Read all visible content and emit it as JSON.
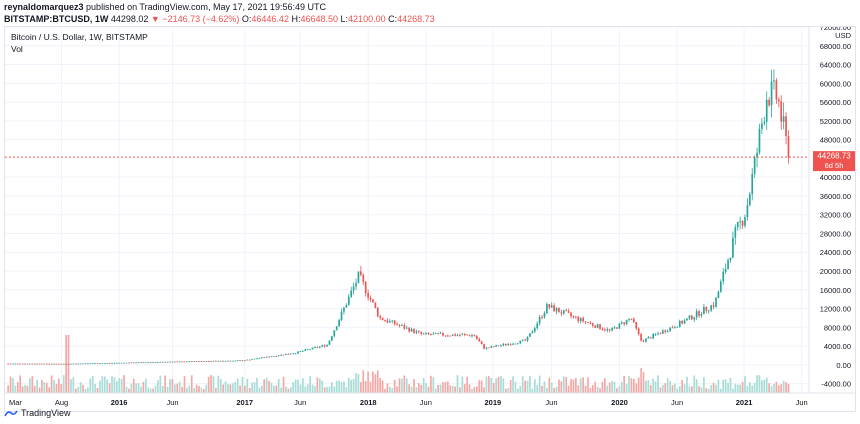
{
  "header": {
    "user": "reynaldomarquez3",
    "published_text": "published on TradingView.com, May 17, 2021 19:56:49 UTC",
    "symbol": "BITSTAMP:BTCUSD, 1W",
    "last": "44298.02",
    "change": "▼ −2146.73 (−4.62%)",
    "o_label": "O:",
    "o": "46446.42",
    "h_label": "H:",
    "h": "46648.50",
    "l_label": "L:",
    "l": "42100.00",
    "c_label": "C:",
    "c": "44268.73"
  },
  "legend": {
    "title": "Bitcoin / U.S. Dollar, 1W, BITSTAMP",
    "vol": "Vol"
  },
  "price_axis": {
    "currency": "USD",
    "labels": [
      "72000.00",
      "68000.00",
      "64000.00",
      "60000.00",
      "56000.00",
      "52000.00",
      "48000.00",
      "40000.00",
      "36000.00",
      "32000.00",
      "28000.00",
      "24000.00",
      "20000.00",
      "16000.00",
      "12000.00",
      "8000.00",
      "4000.00",
      "0.00",
      "-4000.00"
    ],
    "last_price": "44268.73",
    "countdown": "6d 5h"
  },
  "time_axis": {
    "labels": [
      "Mar",
      "Aug",
      "2016",
      "Jun",
      "2017",
      "Jun",
      "2018",
      "Jun",
      "2019",
      "Jun",
      "2020",
      "Jun",
      "2021",
      "Jun"
    ]
  },
  "footer": {
    "brand": "TradingView"
  },
  "colors": {
    "up": "#26a69a",
    "down": "#ef5350",
    "vol_up": "#a8dcd6",
    "vol_down": "#f5a7a5",
    "grid": "#f0f3fa",
    "last_line": "#ef5350"
  },
  "chart_data": {
    "type": "candlestick",
    "title": "Bitcoin / U.S. Dollar, 1W, BITSTAMP",
    "ylabel": "USD",
    "ylim": [
      -6000,
      72000
    ],
    "x_ticks": [
      "Mar",
      "Aug",
      "2016",
      "Jun",
      "2017",
      "Jun",
      "2018",
      "Jun",
      "2019",
      "Jun",
      "2020",
      "Jun",
      "2021",
      "Jun"
    ],
    "price_keypoints": [
      {
        "x": "2015-03",
        "price": 270
      },
      {
        "x": "2015-08",
        "price": 230
      },
      {
        "x": "2016-01",
        "price": 430
      },
      {
        "x": "2016-06",
        "price": 650
      },
      {
        "x": "2017-01",
        "price": 950
      },
      {
        "x": "2017-06",
        "price": 2600
      },
      {
        "x": "2017-09",
        "price": 4300
      },
      {
        "x": "2017-12",
        "price": 19000
      },
      {
        "x": "2018-02",
        "price": 10000
      },
      {
        "x": "2018-06",
        "price": 6500
      },
      {
        "x": "2018-11",
        "price": 6300
      },
      {
        "x": "2018-12",
        "price": 3500
      },
      {
        "x": "2019-04",
        "price": 5200
      },
      {
        "x": "2019-06",
        "price": 12500
      },
      {
        "x": "2019-09",
        "price": 9700
      },
      {
        "x": "2019-12",
        "price": 7200
      },
      {
        "x": "2020-02",
        "price": 10000
      },
      {
        "x": "2020-03",
        "price": 5000
      },
      {
        "x": "2020-07",
        "price": 9200
      },
      {
        "x": "2020-10",
        "price": 13000
      },
      {
        "x": "2020-12",
        "price": 28000
      },
      {
        "x": "2021-01",
        "price": 33000
      },
      {
        "x": "2021-02",
        "price": 45000
      },
      {
        "x": "2021-03",
        "price": 58000
      },
      {
        "x": "2021-04",
        "price": 57000
      },
      {
        "x": "2021-05",
        "price": 44268.73
      }
    ],
    "last_price": 44268.73
  }
}
